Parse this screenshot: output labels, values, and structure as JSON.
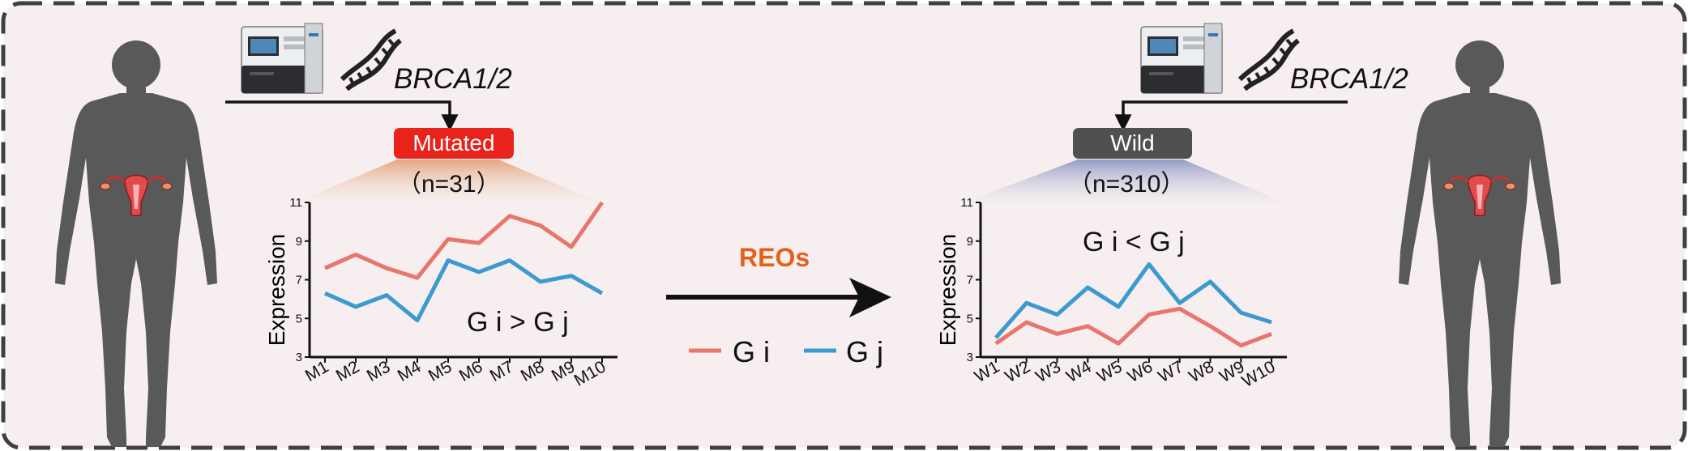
{
  "left_panel": {
    "gene_label": "BRCA1/2",
    "status_label": "Mutated",
    "count_label": "（n=31）",
    "comparison_label": "G i > G j",
    "status_color": "#e8231b"
  },
  "right_panel": {
    "gene_label": "BRCA1/2",
    "status_label": "Wild",
    "count_label": "（n=310）",
    "comparison_label": "G i < G j",
    "status_color": "#505050"
  },
  "center": {
    "relation_label": "REOs",
    "relation_color": "#e2611b"
  },
  "legend": {
    "items": [
      {
        "label": "G i",
        "color": "#e8766c"
      },
      {
        "label": "G j",
        "color": "#3d9ad1"
      }
    ]
  },
  "chart_data": [
    {
      "type": "line",
      "ylabel": "Expression",
      "ylim": [
        3,
        11
      ],
      "yticks": [
        "3",
        "5",
        "7",
        "9",
        "11"
      ],
      "categories": [
        "M1",
        "M2",
        "M3",
        "M4",
        "M5",
        "M6",
        "M7",
        "M8",
        "M9",
        "M10"
      ],
      "series": [
        {
          "name": "G i",
          "values": [
            7.6,
            8.3,
            7.6,
            7.1,
            9.1,
            8.9,
            10.3,
            9.8,
            8.7,
            11.0
          ]
        },
        {
          "name": "G j",
          "values": [
            6.3,
            5.6,
            6.2,
            4.9,
            8.0,
            7.4,
            8.0,
            6.9,
            7.2,
            6.3
          ]
        }
      ]
    },
    {
      "type": "line",
      "ylabel": "Expression",
      "ylim": [
        3,
        11
      ],
      "yticks": [
        "3",
        "5",
        "7",
        "9",
        "11"
      ],
      "categories": [
        "W1",
        "W2",
        "W3",
        "W4",
        "W5",
        "W6",
        "W7",
        "W8",
        "W9",
        "W10"
      ],
      "series": [
        {
          "name": "G i",
          "values": [
            3.7,
            4.8,
            4.2,
            4.6,
            3.7,
            5.2,
            5.5,
            4.6,
            3.6,
            4.2
          ]
        },
        {
          "name": "G j",
          "values": [
            4.0,
            5.8,
            5.2,
            6.6,
            5.6,
            7.8,
            5.8,
            6.9,
            5.3,
            4.8
          ]
        }
      ]
    }
  ]
}
